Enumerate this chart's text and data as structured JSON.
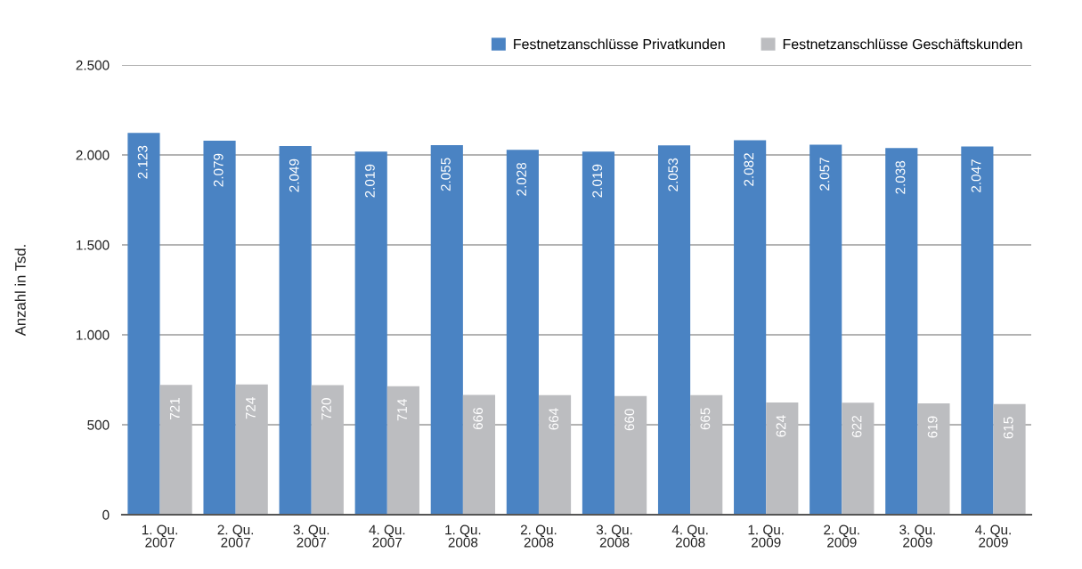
{
  "chart_data": {
    "type": "bar",
    "ylabel": "Anzahl in Tsd.",
    "categories": [
      "1. Qu.\n2007",
      "2. Qu.\n2007",
      "3. Qu.\n2007",
      "4. Qu.\n2007",
      "1. Qu.\n2008",
      "2. Qu.\n2008",
      "3. Qu.\n2008",
      "4. Qu.\n2008",
      "1. Qu.\n2009",
      "2. Qu.\n2009",
      "3. Qu.\n2009",
      "4. Qu.\n2009"
    ],
    "series": [
      {
        "name": "Festnetzanschlüsse Privatkunden",
        "color": "#4a83c3",
        "values": [
          2123,
          2079,
          2049,
          2019,
          2055,
          2028,
          2019,
          2053,
          2082,
          2057,
          2038,
          2047
        ],
        "value_labels": [
          "2.123",
          "2.079",
          "2.049",
          "2.019",
          "2.055",
          "2.028",
          "2.019",
          "2.053",
          "2.082",
          "2.057",
          "2.038",
          "2.047"
        ]
      },
      {
        "name": "Festnetzanschlüsse Geschäftskunden",
        "color": "#bcbdc0",
        "values": [
          721,
          724,
          720,
          714,
          666,
          664,
          660,
          665,
          624,
          622,
          619,
          615
        ],
        "value_labels": [
          "721",
          "724",
          "720",
          "714",
          "666",
          "664",
          "660",
          "665",
          "624",
          "622",
          "619",
          "615"
        ]
      }
    ],
    "ylim": [
      0,
      2500
    ],
    "yticks": [
      0,
      500,
      {
        "value": 1000,
        "label": "1.000"
      },
      {
        "value": 1500,
        "label": "1.500"
      },
      {
        "value": 2000,
        "label": "2.000"
      },
      {
        "value": 2500,
        "label": "2.500"
      }
    ],
    "grid": "y",
    "legend": "top right"
  }
}
